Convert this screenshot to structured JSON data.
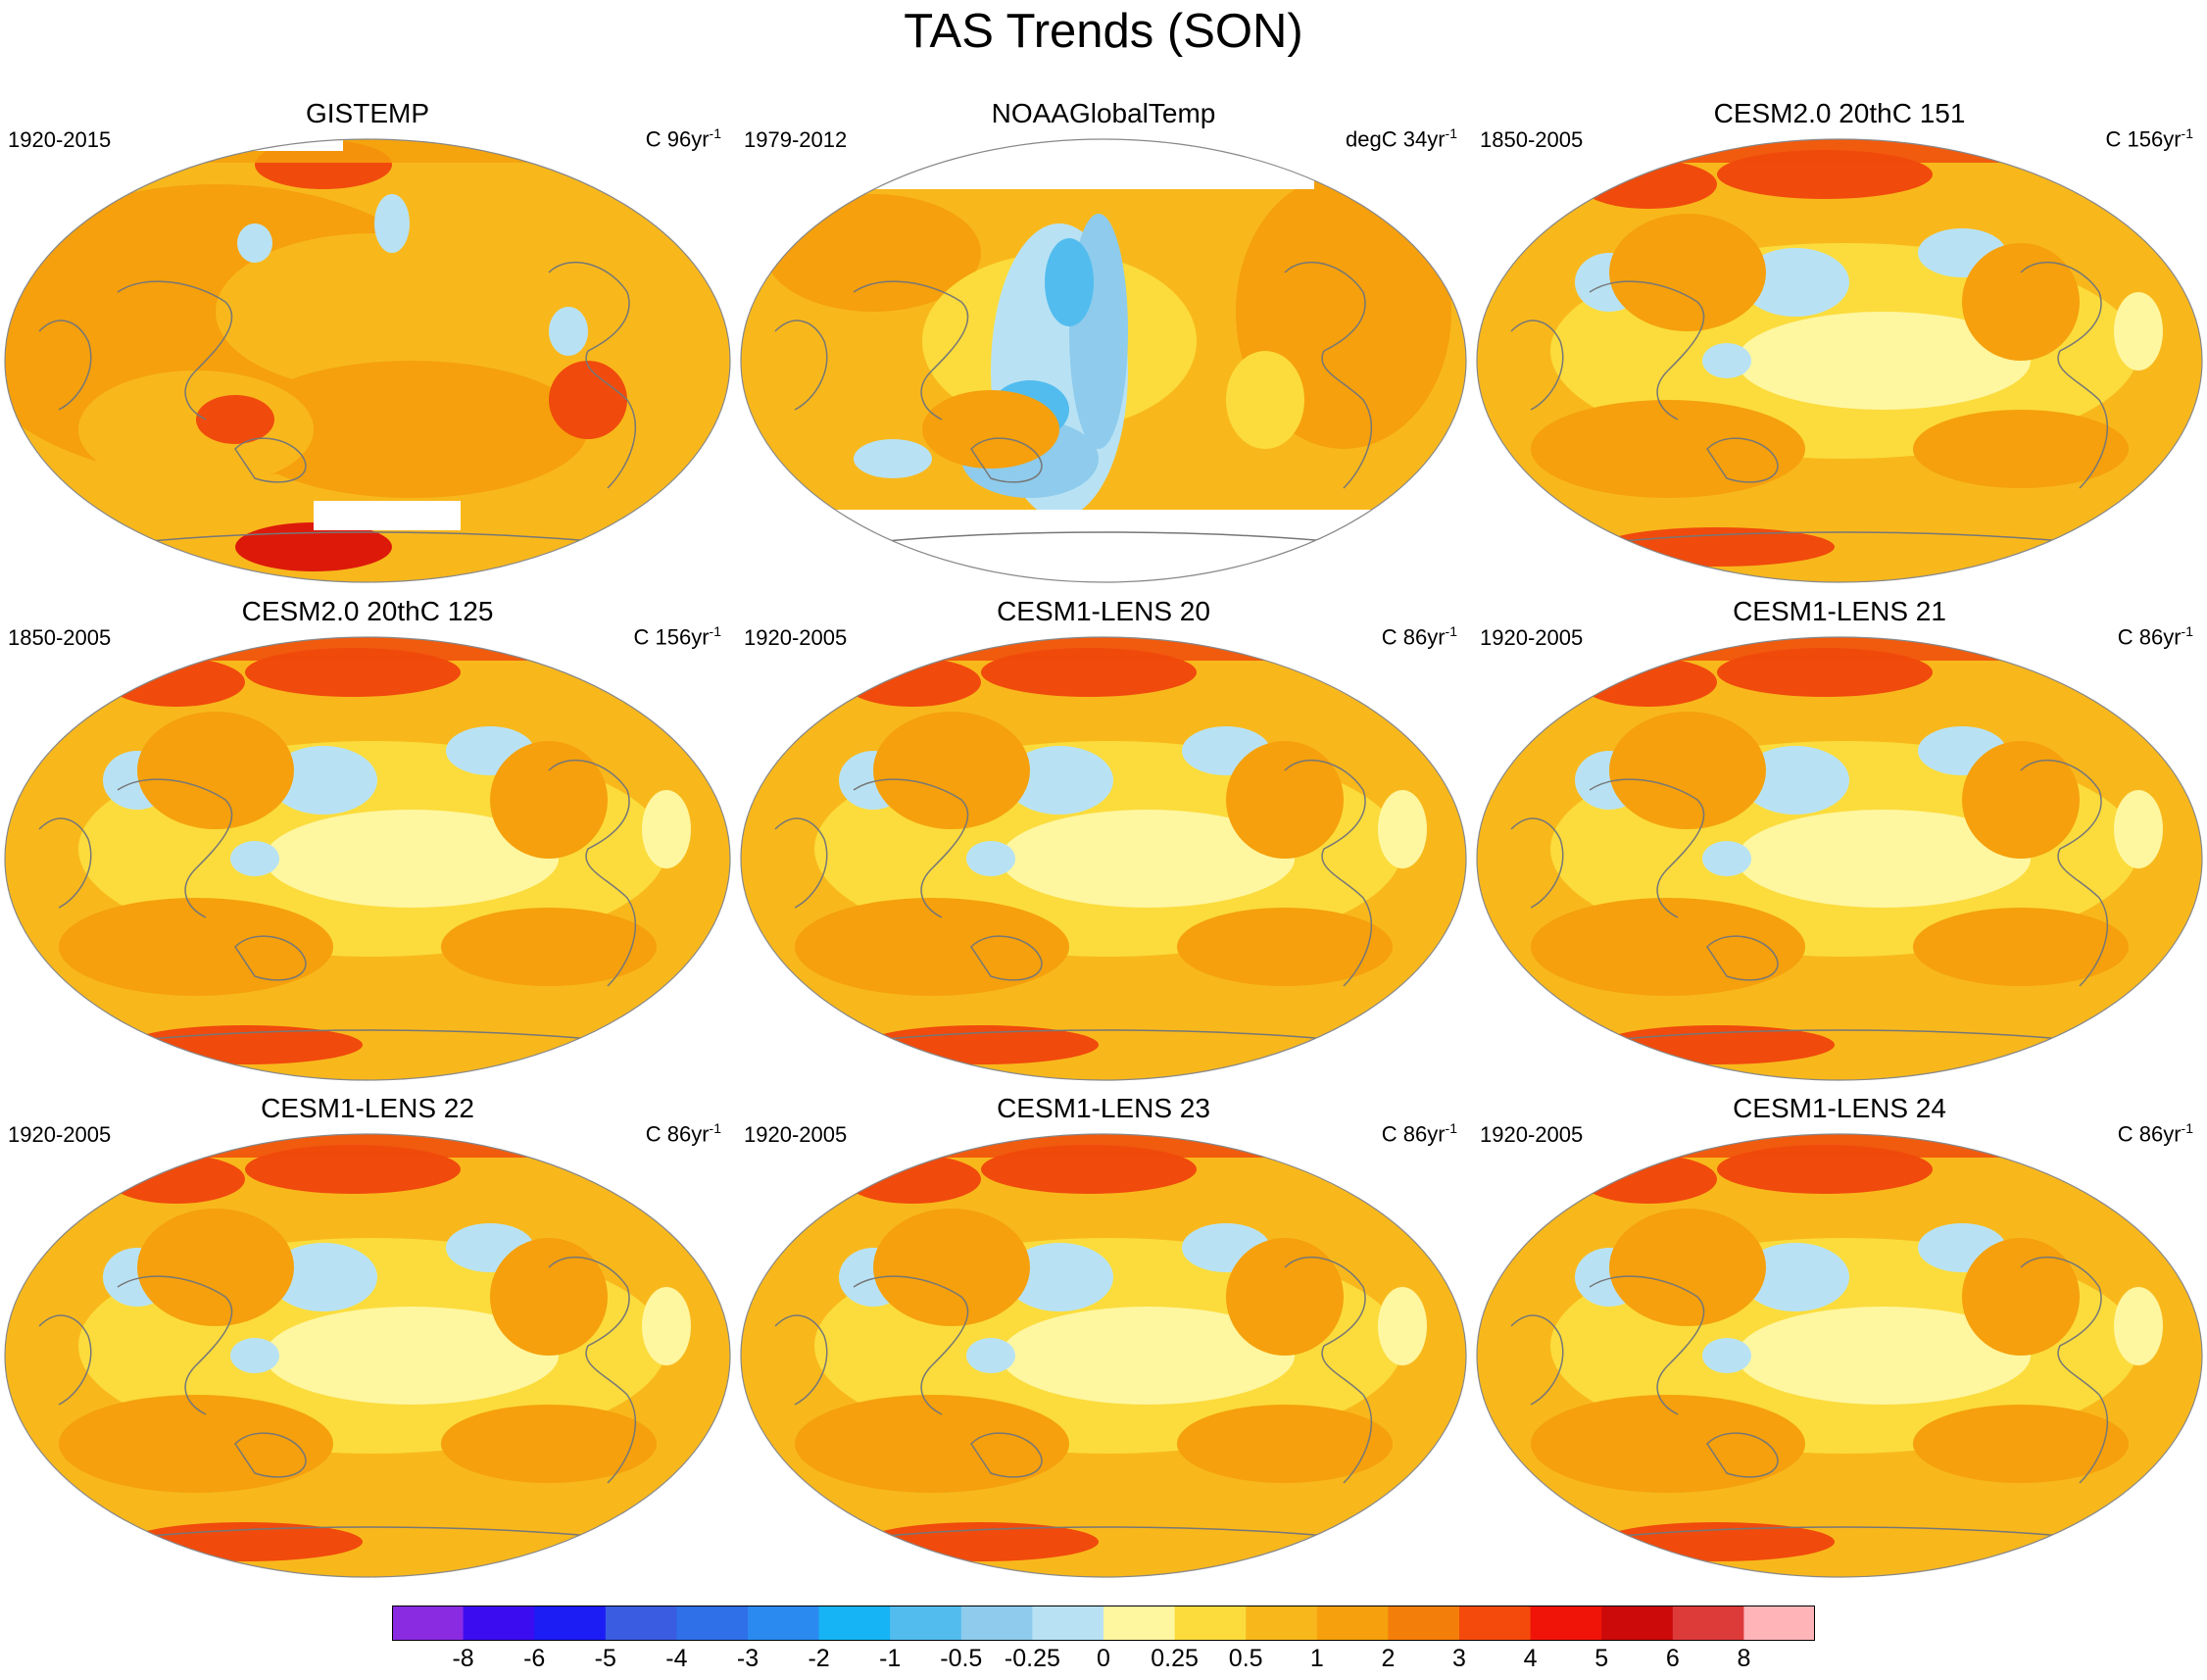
{
  "title": "TAS Trends (SON)",
  "panels": [
    {
      "name": "GISTEMP",
      "period": "1920-2015",
      "units": "C 96yr",
      "units_sup": "-1",
      "missing_arctic": true,
      "missing_antarctic": true,
      "style": "warm"
    },
    {
      "name": "NOAAGlobalTemp",
      "period": "1979-2012",
      "units": "degC 34yr",
      "units_sup": "-1",
      "missing_arctic": true,
      "missing_antarctic": true,
      "style": "cool"
    },
    {
      "name": "CESM2.0 20thC 151",
      "period": "1850-2005",
      "units": "C 156yr",
      "units_sup": "-1",
      "style": "model"
    },
    {
      "name": "CESM2.0 20thC 125",
      "period": "1850-2005",
      "units": "C 156yr",
      "units_sup": "-1",
      "style": "model"
    },
    {
      "name": "CESM1-LENS 20",
      "period": "1920-2005",
      "units": "C 86yr",
      "units_sup": "-1",
      "style": "model"
    },
    {
      "name": "CESM1-LENS 21",
      "period": "1920-2005",
      "units": "C 86yr",
      "units_sup": "-1",
      "style": "model"
    },
    {
      "name": "CESM1-LENS 22",
      "period": "1920-2005",
      "units": "C 86yr",
      "units_sup": "-1",
      "style": "model"
    },
    {
      "name": "CESM1-LENS 23",
      "period": "1920-2005",
      "units": "C 86yr",
      "units_sup": "-1",
      "style": "model"
    },
    {
      "name": "CESM1-LENS 24",
      "period": "1920-2005",
      "units": "C 86yr",
      "units_sup": "-1",
      "style": "model"
    }
  ],
  "colorbar": {
    "colors": [
      "#8a2be2",
      "#3c0cf0",
      "#1c1cf5",
      "#3a5ce0",
      "#2f6fe8",
      "#2a8af0",
      "#16b4f5",
      "#52bcee",
      "#8ecbec",
      "#b8e2f4",
      "#fff6a0",
      "#fbdc3c",
      "#f8b81c",
      "#f5a00c",
      "#f47e0a",
      "#f44a0c",
      "#f01408",
      "#cc0a0a",
      "#dd3a3a",
      "#ffb4b8"
    ],
    "labels": [
      "-8",
      "-6",
      "-5",
      "-4",
      "-3",
      "-2",
      "-1",
      "-0.5",
      "-0.25",
      "0",
      "0.25",
      "0.5",
      "1",
      "2",
      "3",
      "4",
      "5",
      "6",
      "8"
    ]
  }
}
